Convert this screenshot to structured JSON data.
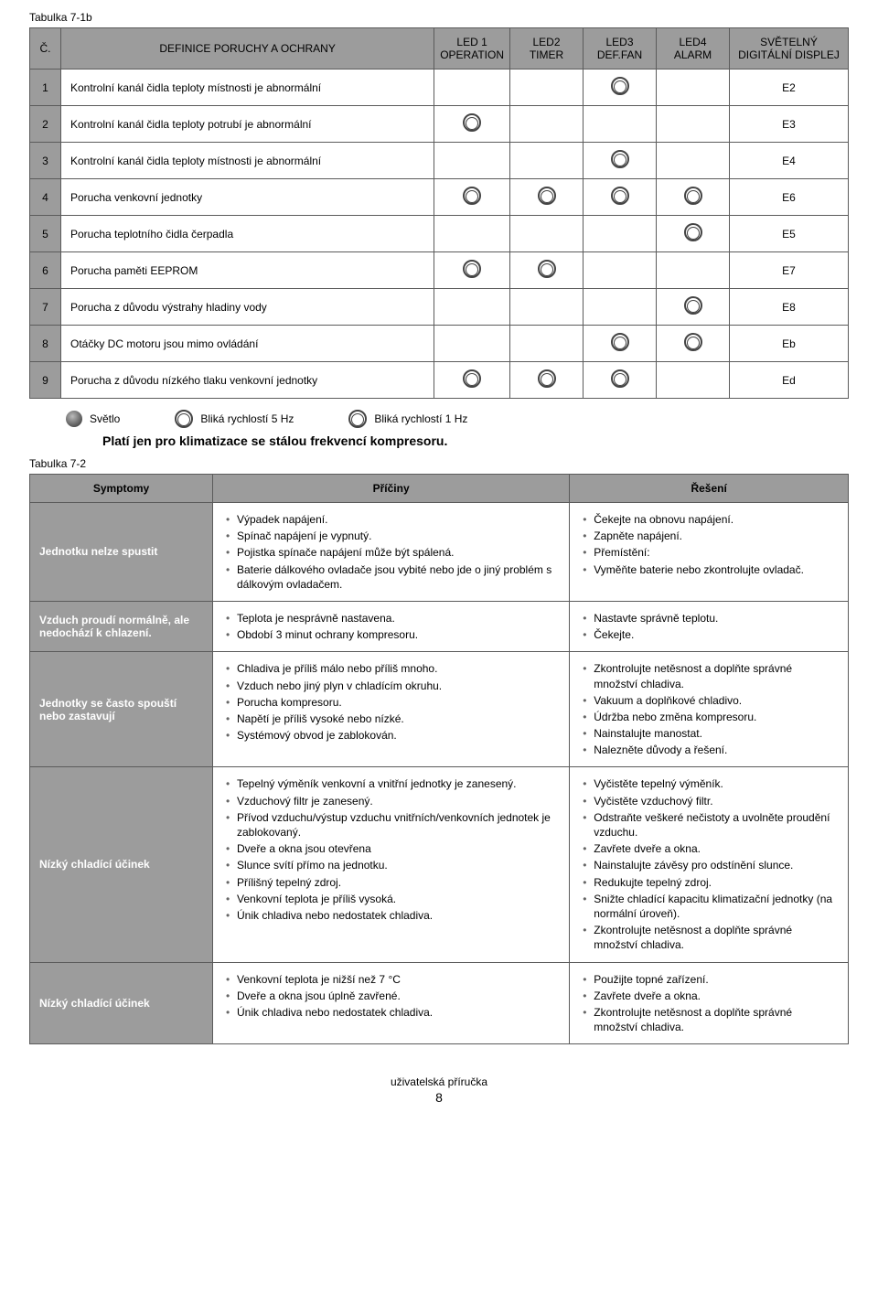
{
  "labels": {
    "table1": "Tabulka 7-1b",
    "table2": "Tabulka 7-2",
    "note": "Platí jen pro klimatizace se stálou frekvencí kompresoru.",
    "footer": "uživatelská příručka",
    "page": "8"
  },
  "t1": {
    "headers": {
      "num": "Č.",
      "def": "DEFINICE PORUCHY A OCHRANY",
      "led1": "LED 1\nOPERATION",
      "led2": "LED2\nTIMER",
      "led3": "LED3\nDEF.FAN",
      "led4": "LED4\nALARM",
      "disp": "SVĚTELNÝ\nDIGITÁLNÍ DISPLEJ"
    },
    "rows": [
      {
        "n": "1",
        "def": "Kontrolní kanál čidla teploty místnosti je abnormální",
        "leds": [
          0,
          0,
          1,
          0
        ],
        "code": "E2"
      },
      {
        "n": "2",
        "def": "Kontrolní kanál čidla teploty potrubí je abnormální",
        "leds": [
          1,
          0,
          0,
          0
        ],
        "code": "E3"
      },
      {
        "n": "3",
        "def": "Kontrolní kanál čidla teploty místnosti je abnormální",
        "leds": [
          0,
          0,
          1,
          0
        ],
        "code": "E4"
      },
      {
        "n": "4",
        "def": "Porucha venkovní jednotky",
        "leds": [
          1,
          1,
          1,
          1
        ],
        "code": "E6"
      },
      {
        "n": "5",
        "def": "Porucha teplotního čidla čerpadla",
        "leds": [
          0,
          0,
          0,
          1
        ],
        "code": "E5"
      },
      {
        "n": "6",
        "def": "Porucha paměti EEPROM",
        "leds": [
          1,
          1,
          0,
          0
        ],
        "code": "E7"
      },
      {
        "n": "7",
        "def": "Porucha z důvodu výstrahy hladiny vody",
        "leds": [
          0,
          0,
          0,
          1
        ],
        "code": "E8"
      },
      {
        "n": "8",
        "def": "Otáčky DC motoru jsou mimo ovládání",
        "leds": [
          0,
          0,
          1,
          1
        ],
        "code": "Eb"
      },
      {
        "n": "9",
        "def": "Porucha z důvodu nízkého tlaku venkovní jednotky",
        "leds": [
          1,
          1,
          1,
          0
        ],
        "code": "Ed"
      }
    ]
  },
  "legend": {
    "a": "Světlo",
    "b": "Bliká rychlostí 5 Hz",
    "c": "Bliká rychlostí 1 Hz"
  },
  "t2": {
    "headers": {
      "sym": "Symptomy",
      "cause": "Příčiny",
      "sol": "Řešení"
    },
    "rows": [
      {
        "sym": "Jednotku nelze spustit",
        "cause": [
          "Výpadek napájení.",
          "Spínač napájení je vypnutý.",
          "Pojistka spínače napájení může být spálená.",
          "Baterie dálkového ovladače jsou vybité nebo jde o jiný problém s dálkovým ovladačem."
        ],
        "sol": [
          "Čekejte na obnovu napájení.",
          "Zapněte napájení.",
          "Přemístění:",
          "Vyměňte baterie nebo zkontrolujte ovladač."
        ]
      },
      {
        "sym": "Vzduch proudí normálně, ale nedochází k chlazení.",
        "cause": [
          "Teplota je nesprávně nastavena.",
          "Období 3 minut ochrany kompresoru."
        ],
        "sol": [
          "Nastavte správně teplotu.",
          "Čekejte."
        ]
      },
      {
        "sym": "Jednotky se často spouští nebo zastavují",
        "cause": [
          "Chladiva je příliš málo nebo příliš mnoho.",
          "Vzduch nebo jiný plyn v chladícím okruhu.",
          "Porucha kompresoru.",
          "Napětí je příliš vysoké nebo nízké.",
          "Systémový obvod je zablokován."
        ],
        "sol": [
          "Zkontrolujte netěsnost a doplňte správné množství chladiva.",
          "Vakuum a doplňkové chladivo.",
          "Údržba nebo změna kompresoru.",
          "Nainstalujte manostat.",
          "Nalezněte důvody a řešení."
        ]
      },
      {
        "sym": "Nízký chladící účinek",
        "cause": [
          "Tepelný výměník venkovní a vnitřní jednotky je zanesený.",
          "Vzduchový filtr je zanesený.",
          "Přívod vzduchu/výstup vzduchu vnitřních/venkovních jednotek je zablokovaný.",
          "Dveře a okna jsou otevřena",
          "Slunce svítí přímo na jednotku.",
          "Přílišný tepelný zdroj.",
          "Venkovní teplota je příliš vysoká.",
          "Únik chladiva nebo nedostatek chladiva."
        ],
        "sol": [
          "Vyčistěte tepelný výměník.",
          "Vyčistěte vzduchový filtr.",
          "Odstraňte veškeré nečistoty a uvolněte proudění vzduchu.",
          "Zavřete dveře a okna.",
          "Nainstalujte závěsy pro odstínění slunce.",
          "Redukujte tepelný zdroj.",
          "Snižte chladící kapacitu klimatizační jednotky (na normální úroveň).",
          "Zkontrolujte netěsnost a doplňte správné množství chladiva."
        ]
      },
      {
        "sym": "Nízký chladící účinek",
        "cause": [
          "Venkovní teplota je nižší než 7 °C",
          "Dveře a okna jsou úplně zavřené.",
          "Únik chladiva nebo nedostatek chladiva."
        ],
        "sol": [
          "Použijte topné zařízení.",
          "Zavřete dveře a okna.",
          "Zkontrolujte netěsnost a doplňte správné množství chladiva."
        ]
      }
    ]
  }
}
